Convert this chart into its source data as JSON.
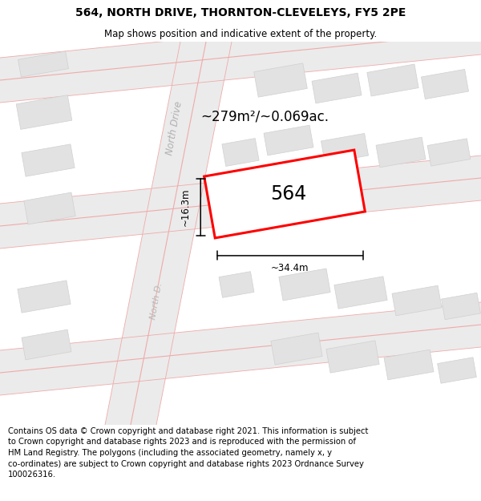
{
  "title": "564, NORTH DRIVE, THORNTON-CLEVELEYS, FY5 2PE",
  "subtitle": "Map shows position and indicative extent of the property.",
  "footer_lines": [
    "Contains OS data © Crown copyright and database right 2021. This information is subject",
    "to Crown copyright and database rights 2023 and is reproduced with the permission of",
    "HM Land Registry. The polygons (including the associated geometry, namely x, y",
    "co-ordinates) are subject to Crown copyright and database rights 2023 Ordnance Survey",
    "100026316."
  ],
  "area_text": "~279m²/~0.069ac.",
  "width_text": "~34.4m",
  "height_text": "~16.3m",
  "plot_number": "564",
  "title_fontsize": 10,
  "subtitle_fontsize": 8.5,
  "footer_fontsize": 7.2,
  "map_bg": "#f7f7f7",
  "building_color": "#e2e2e2",
  "building_edge": "#d0d0d0",
  "road_band_color": "#ebebeb",
  "road_line_color": "#f0aaaa",
  "plot_edge_color": "#ff0000",
  "annotation_color": "#111111"
}
